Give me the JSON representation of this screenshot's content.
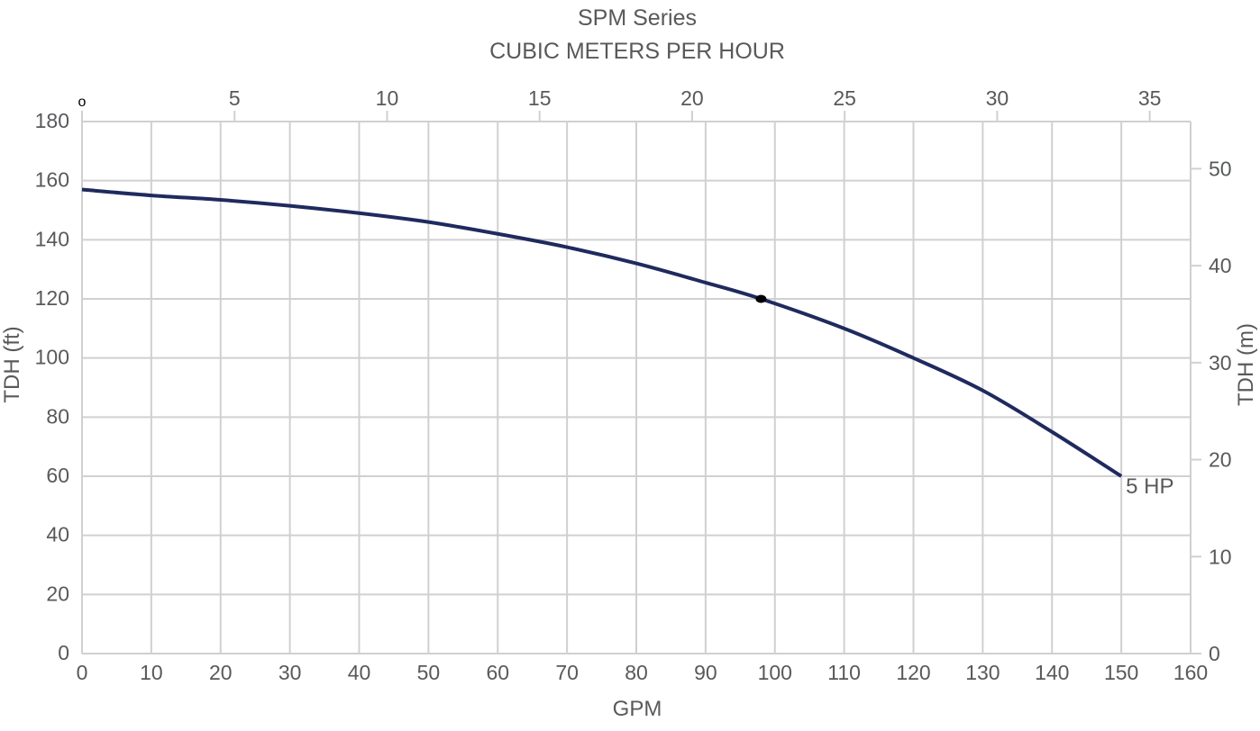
{
  "chart_data": {
    "type": "line",
    "title": "SPM Series",
    "top_axis_label": "CUBIC METERS PER HOUR",
    "xlabel": "GPM",
    "ylabel_left": "TDH (ft)",
    "ylabel_right": "TDH (m)",
    "xlim": [
      0,
      160
    ],
    "ylim": [
      0,
      180
    ],
    "grid": true,
    "x_ticks": [
      "0",
      "10",
      "20",
      "30",
      "40",
      "50",
      "60",
      "70",
      "80",
      "90",
      "100",
      "110",
      "120",
      "130",
      "140",
      "150",
      "160"
    ],
    "y_ticks_left": [
      "0",
      "20",
      "40",
      "60",
      "80",
      "100",
      "120",
      "140",
      "160",
      "180"
    ],
    "top_ticks": [
      {
        "label": "o",
        "value": 0
      },
      {
        "label": "5",
        "value": 5
      },
      {
        "label": "10",
        "value": 10
      },
      {
        "label": "15",
        "value": 15
      },
      {
        "label": "20",
        "value": 20
      },
      {
        "label": "25",
        "value": 25
      },
      {
        "label": "30",
        "value": 30
      },
      {
        "label": "35",
        "value": 35
      }
    ],
    "right_ticks": [
      {
        "label": "0",
        "value": 0
      },
      {
        "label": "10",
        "value": 10
      },
      {
        "label": "20",
        "value": 20
      },
      {
        "label": "30",
        "value": 30
      },
      {
        "label": "40",
        "value": 40
      },
      {
        "label": "50",
        "value": 50
      }
    ],
    "series": [
      {
        "name": "5 HP",
        "color": "#1f2a5e",
        "x": [
          0,
          10,
          20,
          30,
          40,
          50,
          60,
          70,
          80,
          90,
          98,
          110,
          120,
          130,
          140,
          150
        ],
        "y": [
          157,
          155,
          153.5,
          151.5,
          149,
          146,
          142,
          137.5,
          132,
          125.5,
          120,
          110,
          100,
          89,
          75,
          60
        ]
      }
    ],
    "marker_point": {
      "x": 98,
      "y": 120
    },
    "colors": {
      "grid": "#d0d0d0",
      "text": "#58595b",
      "curve": "#1f2a5e",
      "marker": "#000000"
    }
  }
}
